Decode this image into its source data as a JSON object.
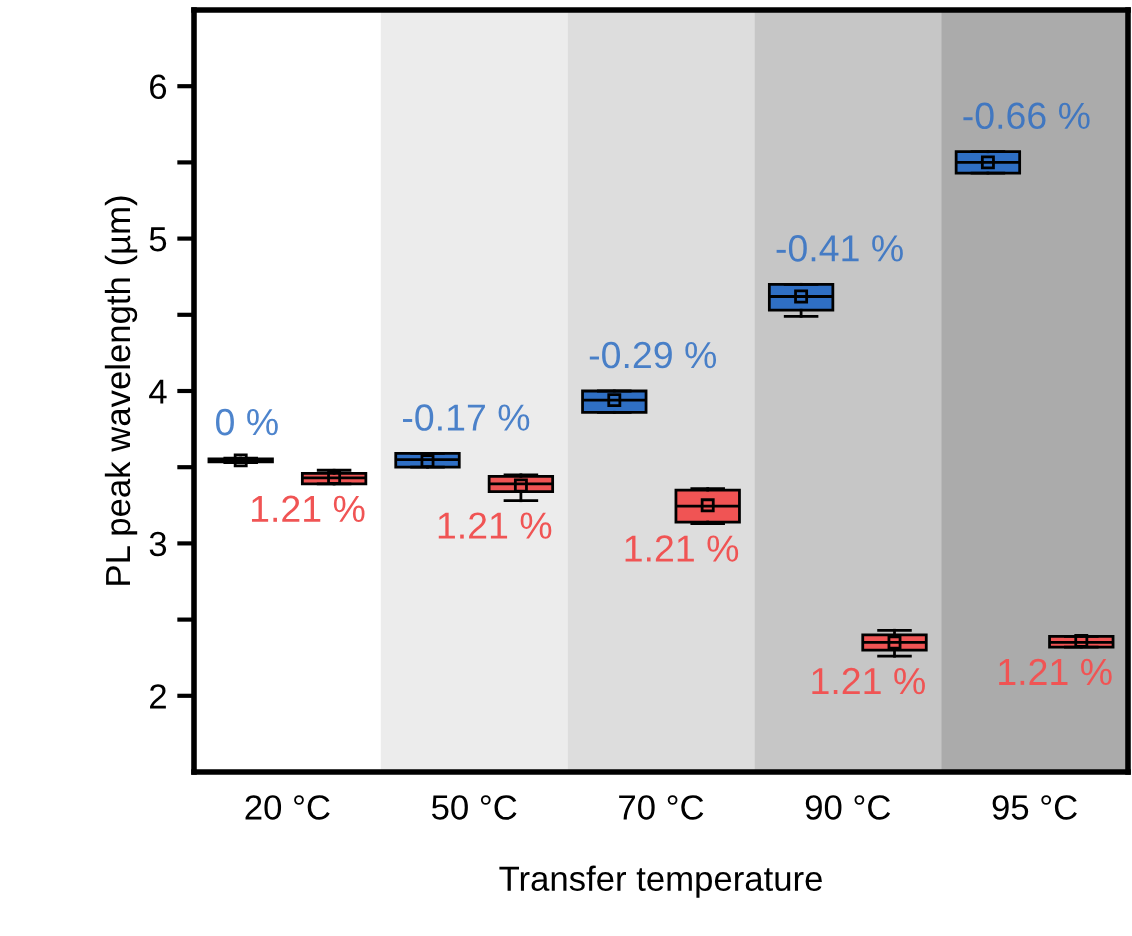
{
  "chart_data": {
    "type": "box",
    "xlabel": "Transfer temperature",
    "ylabel": "PL peak wavelength (µm)",
    "categories": [
      "20 °C",
      "50 °C",
      "70 °C",
      "90 °C",
      "95 °C"
    ],
    "ylim": [
      1.5,
      6.5
    ],
    "yticks": [
      2,
      {
        "value": 2.5,
        "label": null
      },
      3,
      {
        "value": 3.5,
        "label": null
      },
      4,
      {
        "value": 4.5,
        "label": null
      },
      5,
      {
        "value": 5.5,
        "label": null
      },
      6
    ],
    "grid": false,
    "legend": false,
    "bands": [
      {
        "axis": "x",
        "from": "50 °C",
        "to": "50 °C",
        "color": "#ececec"
      },
      {
        "axis": "x",
        "from": "70 °C",
        "to": "70 °C",
        "color": "#dddddd"
      },
      {
        "axis": "x",
        "from": "90 °C",
        "to": "90 °C",
        "color": "#c6c6c6"
      },
      {
        "axis": "x",
        "from": "95 °C",
        "to": "95 °C",
        "color": "#ababab"
      }
    ],
    "series": [
      {
        "color": "#2f6fc4",
        "value_labels": [
          "0 %",
          "-0.17 %",
          "-0.29 %",
          "-0.41 %",
          "-0.66 %"
        ],
        "boxes": [
          {
            "low": 3.53,
            "q1": 3.535,
            "median": 3.545,
            "q3": 3.555,
            "high": 3.56,
            "mean": 3.545
          },
          {
            "low": 3.5,
            "q1": 3.5,
            "median": 3.55,
            "q3": 3.59,
            "high": 3.59,
            "mean": 3.54
          },
          {
            "low": 3.86,
            "q1": 3.86,
            "median": 3.94,
            "q3": 4.0,
            "high": 4.0,
            "mean": 3.94
          },
          {
            "low": 4.49,
            "q1": 4.53,
            "median": 4.62,
            "q3": 4.7,
            "high": 4.7,
            "mean": 4.62
          },
          {
            "low": 5.43,
            "q1": 5.43,
            "median": 5.5,
            "q3": 5.57,
            "high": 5.57,
            "mean": 5.5
          }
        ]
      },
      {
        "color": "#f05454",
        "value_labels": [
          "1.21 %",
          "1.21 %",
          "1.21 %",
          "1.21 %",
          "1.21 %"
        ],
        "boxes": [
          {
            "low": 3.39,
            "q1": 3.39,
            "median": 3.43,
            "q3": 3.46,
            "high": 3.48,
            "mean": 3.43
          },
          {
            "low": 3.28,
            "q1": 3.34,
            "median": 3.39,
            "q3": 3.44,
            "high": 3.45,
            "mean": 3.38
          },
          {
            "low": 3.13,
            "q1": 3.14,
            "median": 3.245,
            "q3": 3.35,
            "high": 3.36,
            "mean": 3.25
          },
          {
            "low": 2.26,
            "q1": 2.3,
            "median": 2.35,
            "q3": 2.4,
            "high": 2.43,
            "mean": 2.35
          },
          {
            "low": 2.32,
            "q1": 2.32,
            "median": 2.35,
            "q3": 2.39,
            "high": 2.39,
            "mean": 2.36
          }
        ]
      }
    ]
  }
}
